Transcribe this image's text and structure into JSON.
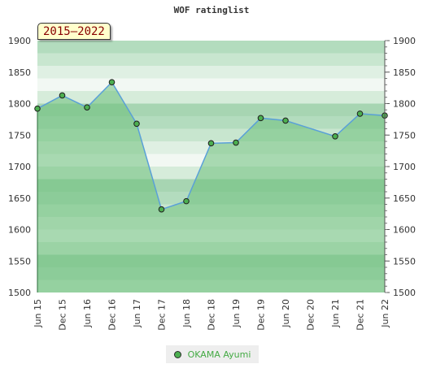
{
  "chart_data": {
    "type": "line",
    "title": "WOF ratinglist",
    "period_label": "2015–2022",
    "ylim": [
      1500,
      1900
    ],
    "y_ticks": [
      1500,
      1550,
      1600,
      1650,
      1700,
      1750,
      1800,
      1850,
      1900
    ],
    "x_tick_labels": [
      "Jun 15",
      "Dec 15",
      "Jun 16",
      "Dec 16",
      "Jun 17",
      "Dec 17",
      "Jun 18",
      "Dec 18",
      "Jun 19",
      "Dec 19",
      "Jun 20",
      "Dec 20",
      "Jun 21",
      "Dec 21",
      "Jun 22"
    ],
    "legend_position": "bottom",
    "colors": {
      "line": "#5aa0d8",
      "fill": "#6cbf7a",
      "marker": "#4caf50",
      "legend_text": "#44aa44"
    },
    "series": [
      {
        "name": "OKAMA Ayumi",
        "points": [
          {
            "x": "2015-06",
            "y": 1792
          },
          {
            "x": "2015-12",
            "y": 1813
          },
          {
            "x": "2016-06",
            "y": 1794
          },
          {
            "x": "2016-12",
            "y": 1834
          },
          {
            "x": "2017-06",
            "y": 1768
          },
          {
            "x": "2017-12",
            "y": 1632
          },
          {
            "x": "2018-06",
            "y": 1645
          },
          {
            "x": "2018-12",
            "y": 1737
          },
          {
            "x": "2019-06",
            "y": 1738
          },
          {
            "x": "2019-12",
            "y": 1777
          },
          {
            "x": "2020-06",
            "y": 1773
          },
          {
            "x": "2021-06",
            "y": 1748
          },
          {
            "x": "2021-12",
            "y": 1784
          },
          {
            "x": "2022-06",
            "y": 1781
          }
        ]
      }
    ]
  }
}
